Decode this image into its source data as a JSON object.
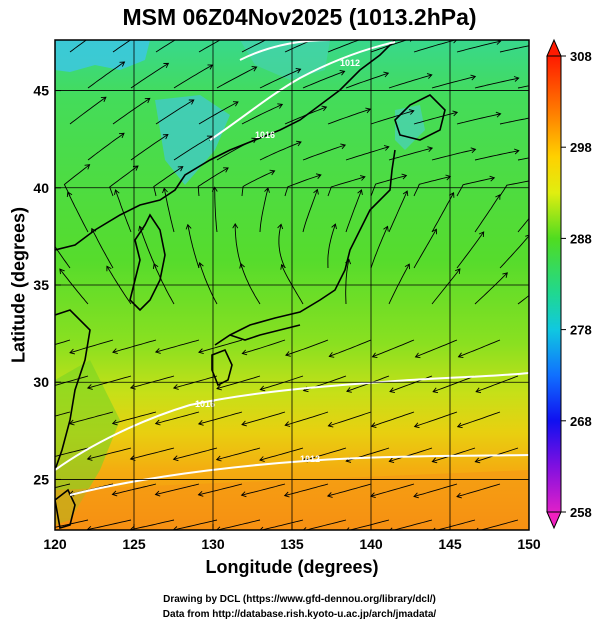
{
  "title": "MSM 06Z04Nov2025 (1013.2hPa)",
  "x_axis": {
    "label": "Longitude (degrees)",
    "range": [
      120,
      150
    ],
    "ticks": [
      120,
      125,
      130,
      135,
      140,
      145,
      150
    ]
  },
  "y_axis": {
    "label": "Latitude  (degrees)",
    "range": [
      22.4,
      47.6
    ],
    "ticks": [
      25,
      30,
      35,
      40,
      45
    ]
  },
  "colorbar": {
    "min": 258,
    "max": 308,
    "labels": [
      308,
      298,
      288,
      278,
      268,
      258
    ]
  },
  "contour_labels": [
    "1016",
    "1012",
    "1016",
    "1012"
  ],
  "credits": [
    "Drawing by DCL (https://www.gfd-dennou.org/library/dcl/)",
    "Data from http://database.rish.kyoto-u.ac.jp/arch/jmadata/"
  ]
}
